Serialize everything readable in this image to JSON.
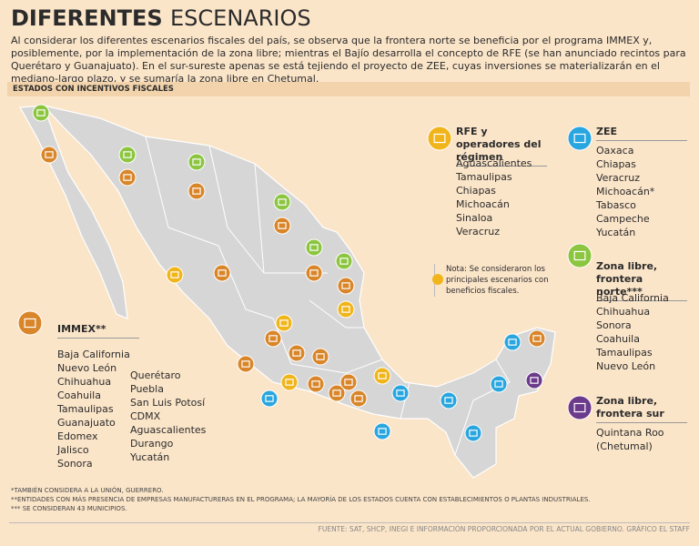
{
  "header": {
    "title_bold": "DIFERENTES",
    "title_light": "ESCENARIOS",
    "intro": "Al considerar los diferentes escenarios fiscales del país, se observa que la frontera norte se beneficia por el programa IMMEX y, posiblemente, por la implementación de la zona libre; mientras el Bajío desarrolla el concepto de RFE (se han anunciado recintos para Querétaro y Guanajuato). En el sur-sureste apenas se está tejiendo el proyecto de ZEE, cuyas inversiones se materializarán en el mediano-largo plazo, y se sumaría la zona libre en Chetumal."
  },
  "section_label": "ESTADOS CON INCENTIVOS FISCALES",
  "legend": {
    "immex": {
      "title": "IMMEX**",
      "items": [
        "Baja California",
        "Nuevo León",
        "Chihuahua",
        "Coahuila",
        "Tamaulipas",
        "Guanajuato",
        "Edomex",
        "Jalisco",
        "Sonora",
        "Querétaro",
        "Puebla",
        "San Luis Potosí",
        "CDMX",
        "Aguascalientes",
        "Durango",
        "Yucatán"
      ]
    },
    "rfe": {
      "title": "RFE y operadores del régimen",
      "items": [
        "Aguascalientes",
        "Tamaulipas",
        "Chiapas",
        "Michoacán",
        "Sinaloa",
        "Veracruz"
      ]
    },
    "zee": {
      "title": "ZEE",
      "items": [
        "Oaxaca",
        "Chiapas",
        "Veracruz",
        "Michoacán*",
        "Tabasco",
        "Campeche",
        "Yucatán"
      ]
    },
    "zona_norte": {
      "title": "Zona libre, frontera norte***",
      "items": [
        "Baja California",
        "Chihuahua",
        "Sonora",
        "Coahuila",
        "Tamaulipas",
        "Nuevo León"
      ]
    },
    "zona_sur": {
      "title": "Zona libre, frontera sur",
      "items": [
        "Quintana Roo",
        "(Chetumal)"
      ]
    }
  },
  "note": "Nota: Se consideraron los principales escenarios con beneficios fiscales.",
  "footnotes": [
    "*TAMBIÉN CONSIDERA A LA UNIÓN, GUERRERO.",
    "**ENTIDADES CON MÁS PRESENCIA DE EMPRESAS MANUFACTURERAS EN EL PROGRAMA; LA MAYORÍA DE LOS ESTADOS CUENTA CON ESTABLECIMIENTOS O PLANTAS INDUSTRIALES.",
    "*** SE CONSIDERAN 43 MUNICIPIOS."
  ],
  "source": "FUENTE: SAT, SHCP, INEGI E INFORMACIÓN PROPORCIONADA POR EL ACTUAL GOBIERNO.   GRÁFICO EL STAFF"
}
